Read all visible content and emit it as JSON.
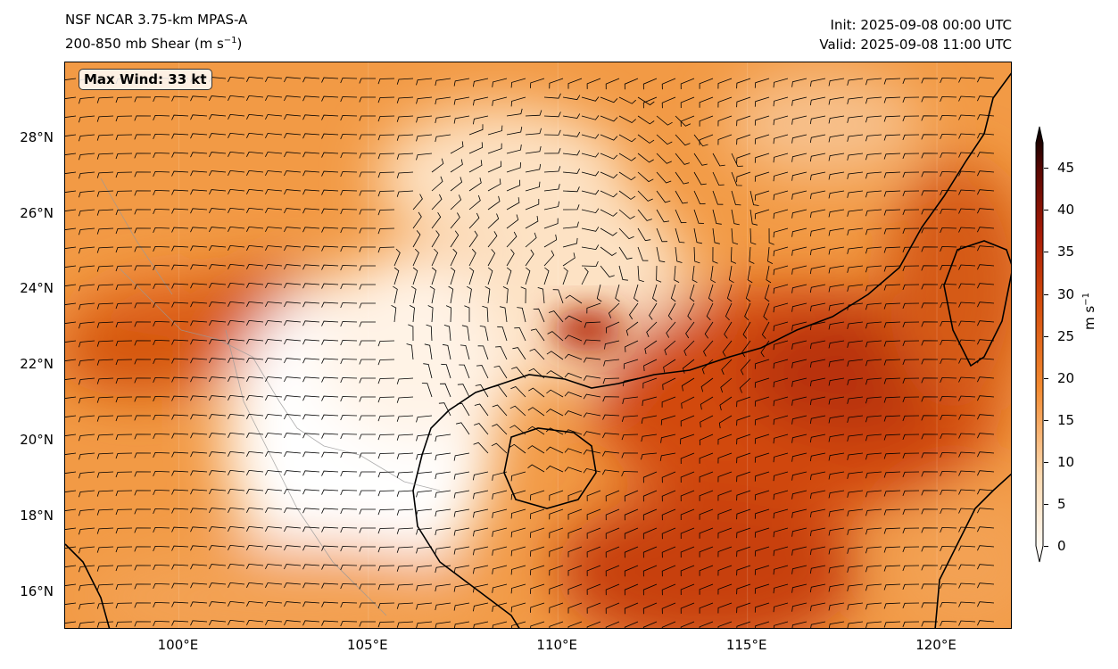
{
  "header": {
    "model_title": "NSF NCAR 3.75-km MPAS-A",
    "field_title_prefix": "200-850 mb Shear (m s",
    "field_title_sup": "−1",
    "field_title_suffix": ")",
    "init": "Init: 2025-09-08 00:00 UTC",
    "valid": "Valid: 2025-09-08 11:00 UTC"
  },
  "annotation": {
    "max_wind": "Max Wind: 33 kt"
  },
  "map": {
    "lon_range": [
      97,
      122
    ],
    "lat_range": [
      15,
      30
    ],
    "lat_ticks": [
      {
        "value": 28,
        "label": "28°N"
      },
      {
        "value": 26,
        "label": "26°N"
      },
      {
        "value": 24,
        "label": "24°N"
      },
      {
        "value": 22,
        "label": "22°N"
      },
      {
        "value": 20,
        "label": "20°N"
      },
      {
        "value": 18,
        "label": "18°N"
      },
      {
        "value": 16,
        "label": "16°N"
      }
    ],
    "lon_ticks": [
      {
        "value": 100,
        "label": "100°E"
      },
      {
        "value": 105,
        "label": "105°E"
      },
      {
        "value": 110,
        "label": "110°E"
      },
      {
        "value": 115,
        "label": "115°E"
      },
      {
        "value": 120,
        "label": "120°E"
      }
    ],
    "colors": {
      "low": "#ffffff",
      "mid": "#f08a30",
      "high": "#b82a08",
      "coast": "#000000",
      "border": "#999999"
    }
  },
  "colorbar": {
    "units_prefix": "m s",
    "units_sup": "−1",
    "ticks": [
      "0",
      "5",
      "10",
      "15",
      "20",
      "25",
      "30",
      "35",
      "40",
      "45"
    ],
    "tick_values": [
      0,
      5,
      10,
      15,
      20,
      25,
      30,
      35,
      40,
      45
    ],
    "max": 48
  }
}
